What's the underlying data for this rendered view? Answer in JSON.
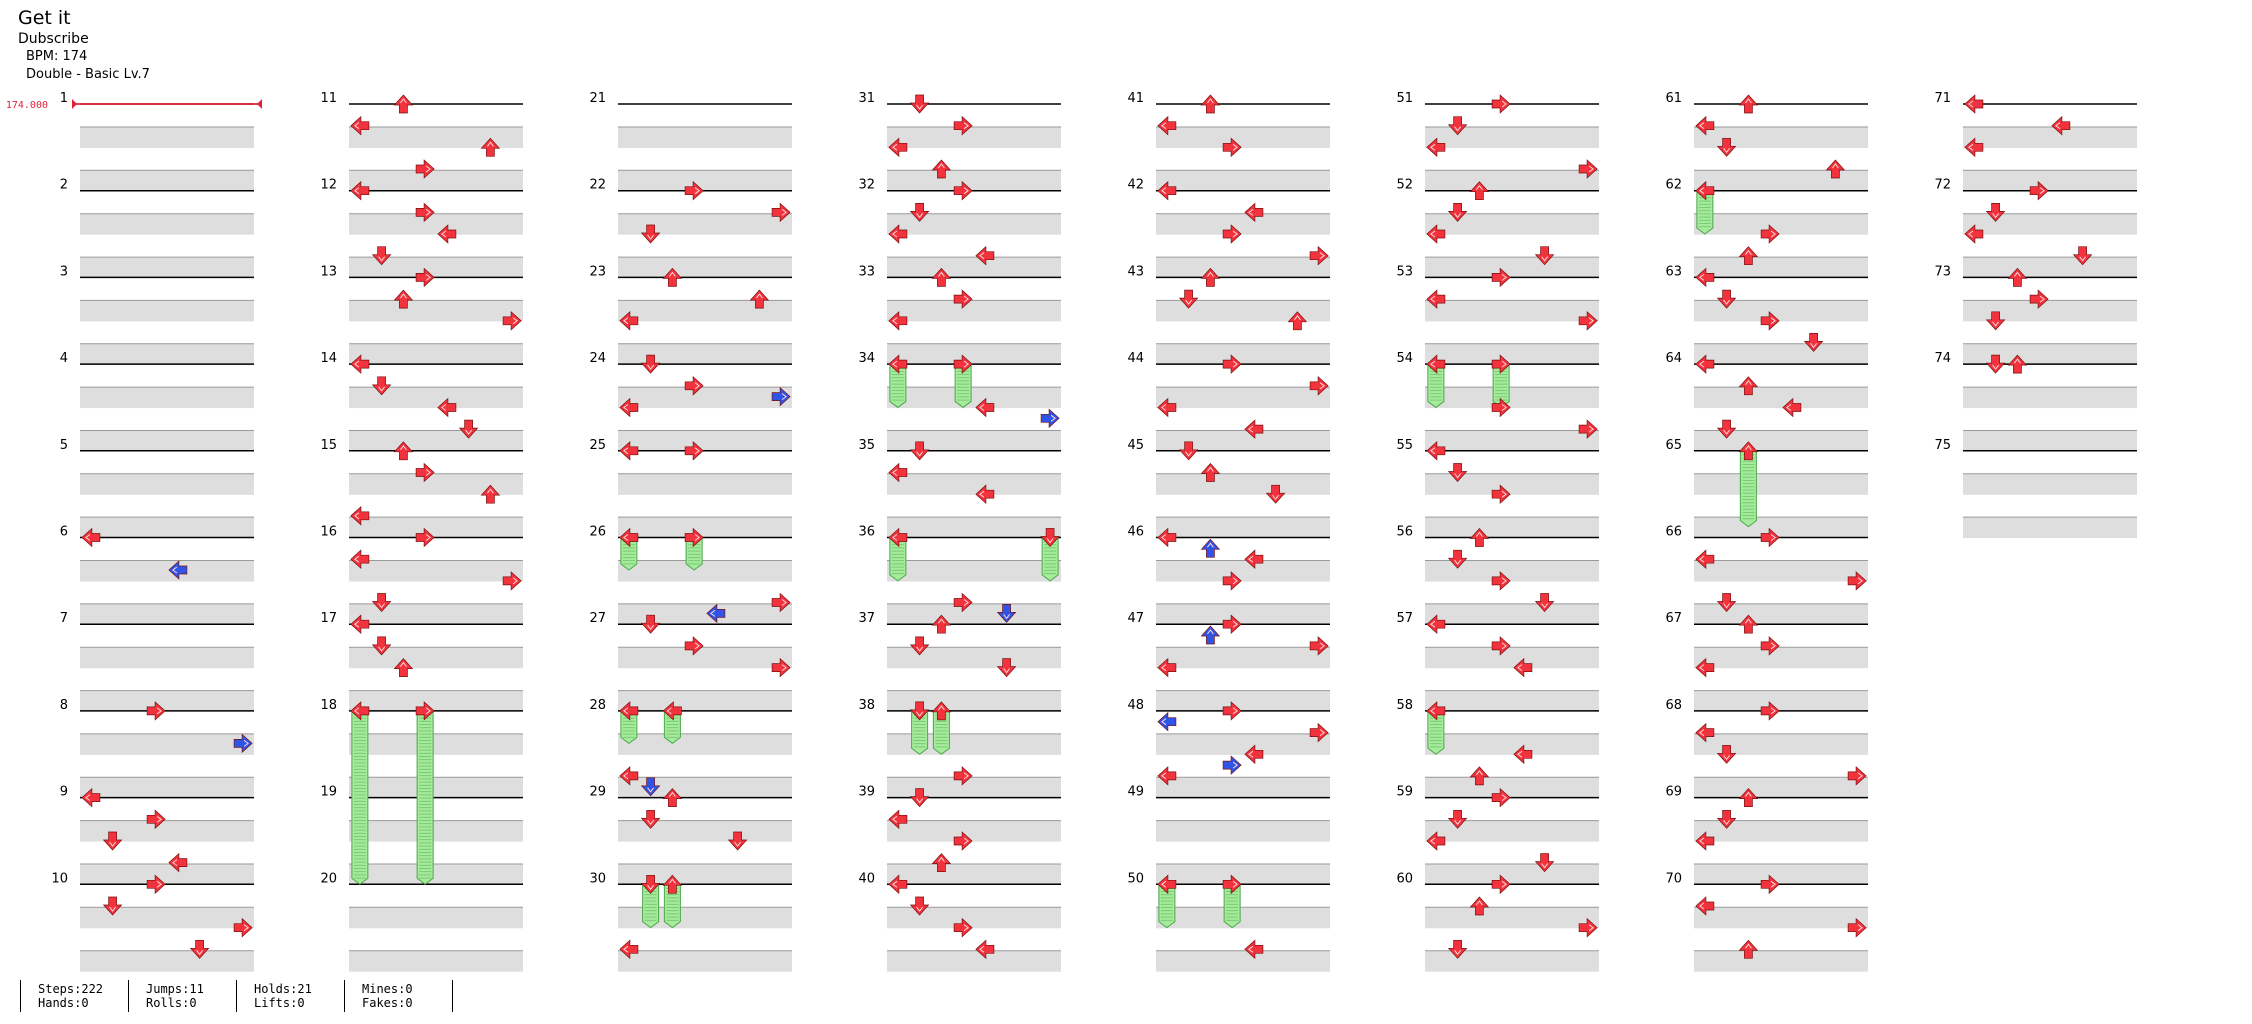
{
  "song": {
    "title": "Get it",
    "artist": "Dubscribe",
    "bpm_label": "BPM: 174",
    "difficulty_label": "Double - Basic Lv.7"
  },
  "bpm_marker": "174.000",
  "measures": [
    "1",
    "2",
    "3",
    "4",
    "5",
    "6",
    "7",
    "8",
    "9",
    "10",
    "11",
    "12",
    "13",
    "14",
    "15",
    "16",
    "17",
    "18",
    "19",
    "20",
    "21",
    "22",
    "23",
    "24",
    "25",
    "26",
    "27",
    "28",
    "29",
    "30",
    "31",
    "32",
    "33",
    "34",
    "35",
    "36",
    "37",
    "38",
    "39",
    "40",
    "41",
    "42",
    "43",
    "44",
    "45",
    "46",
    "47",
    "48",
    "49",
    "50",
    "51",
    "52",
    "53",
    "54",
    "55",
    "56",
    "57",
    "58",
    "59",
    "60",
    "61",
    "62",
    "63",
    "64",
    "65",
    "66",
    "67",
    "68",
    "69",
    "70",
    "71",
    "72",
    "73",
    "74",
    "75"
  ],
  "colors": {
    "tap": "#f2323c",
    "tap_alt": "#2f55e8",
    "hold_fill": "#a6ea9c",
    "hold_stroke": "#4aa84a",
    "band": "#dedede",
    "bpm_line": "#e0223a"
  },
  "notes": {
    "m6": [
      {
        "beat": 0,
        "dir": "L"
      },
      {
        "beat": 0.75,
        "dir": "L",
        "alt": true
      }
    ],
    "m8": [
      {
        "beat": 0,
        "dir": "R"
      },
      {
        "beat": 0.75,
        "dir": "R",
        "alt": true
      }
    ],
    "m9": [
      {
        "beat": 0,
        "dir": "L"
      },
      {
        "beat": 0.5,
        "dir": "R"
      },
      {
        "beat": 1,
        "dir": "D"
      },
      {
        "beat": 1.5,
        "dir": "L"
      }
    ],
    "m10": [
      {
        "beat": 0,
        "dir": "R"
      },
      {
        "beat": 0.5,
        "dir": "D"
      },
      {
        "beat": 1,
        "dir": "R"
      },
      {
        "beat": 1.5,
        "dir": "D"
      }
    ],
    "m11": [
      {
        "beat": 0,
        "dir": "U"
      },
      {
        "beat": 0.5,
        "dir": "L"
      },
      {
        "beat": 1,
        "dir": "U"
      },
      {
        "beat": 1.5,
        "dir": "R"
      }
    ],
    "m12": [
      {
        "beat": 0,
        "dir": "L"
      },
      {
        "beat": 0.5,
        "dir": "R"
      },
      {
        "beat": 1,
        "dir": "L"
      },
      {
        "beat": 1.5,
        "dir": "D"
      }
    ],
    "m13": [
      {
        "beat": 0,
        "dir": "R"
      },
      {
        "beat": 0.5,
        "dir": "U"
      },
      {
        "beat": 1,
        "dir": "R"
      }
    ],
    "m14": [
      {
        "beat": 0,
        "dir": "L"
      },
      {
        "beat": 0.5,
        "dir": "D"
      },
      {
        "beat": 1,
        "dir": "L"
      },
      {
        "beat": 1.5,
        "dir": "D"
      }
    ],
    "m15": [
      {
        "beat": 0,
        "dir": "U"
      },
      {
        "beat": 0.5,
        "dir": "R"
      },
      {
        "beat": 1,
        "dir": "U"
      },
      {
        "beat": 1.5,
        "dir": "L"
      }
    ],
    "m16": [
      {
        "beat": 0,
        "dir": "R"
      },
      {
        "beat": 0.5,
        "dir": "L"
      },
      {
        "beat": 1,
        "dir": "R"
      },
      {
        "beat": 1.5,
        "dir": "D"
      }
    ],
    "m17": [
      {
        "beat": 0,
        "dir": "L"
      },
      {
        "beat": 0.5,
        "dir": "D"
      },
      {
        "beat": 1,
        "dir": "U"
      }
    ],
    "m18": [
      {
        "beat": 0,
        "dir": "L",
        "hold": 4
      },
      {
        "beat": 0,
        "dir": "R",
        "hold": 4
      }
    ],
    "m22": [
      {
        "beat": 0,
        "dir": "R"
      },
      {
        "beat": 0.5,
        "dir": "R"
      },
      {
        "beat": 1,
        "dir": "D"
      }
    ],
    "m23": [
      {
        "beat": 0,
        "dir": "U"
      },
      {
        "beat": 0.5,
        "dir": "U"
      },
      {
        "beat": 1,
        "dir": "L"
      }
    ],
    "m24": [
      {
        "beat": 0,
        "dir": "D"
      },
      {
        "beat": 0.5,
        "dir": "R"
      },
      {
        "beat": 0.75,
        "dir": "R",
        "alt": true
      },
      {
        "beat": 1,
        "dir": "L"
      }
    ],
    "m25": [
      {
        "beat": 0,
        "dir": "R"
      },
      {
        "beat": 0,
        "dir": "L"
      }
    ],
    "m26": [
      {
        "beat": 0,
        "dir": "R",
        "hold": 0.75
      },
      {
        "beat": 0,
        "dir": "L",
        "hold": 0.75
      },
      {
        "beat": 1.5,
        "dir": "R"
      },
      {
        "beat": 1.75,
        "dir": "L",
        "alt": true
      }
    ],
    "m27": [
      {
        "beat": 0,
        "dir": "D"
      },
      {
        "beat": 0.5,
        "dir": "R"
      },
      {
        "beat": 1,
        "dir": "R"
      }
    ],
    "m28": [
      {
        "beat": 0,
        "dir": "L",
        "hold": 0.75
      },
      {
        "beat": 0,
        "dir": "L",
        "hold": 0.75,
        "col": 2
      },
      {
        "beat": 1.5,
        "dir": "L"
      },
      {
        "beat": 1.75,
        "dir": "D",
        "alt": true
      },
      {
        "beat": 2,
        "dir": "U"
      }
    ],
    "m29": [
      {
        "beat": 0.5,
        "dir": "D"
      },
      {
        "beat": 1,
        "dir": "D"
      }
    ],
    "m30": [
      {
        "beat": 0,
        "dir": "D",
        "hold": 1
      },
      {
        "beat": 0,
        "dir": "U",
        "hold": 1
      },
      {
        "beat": 1.5,
        "dir": "L"
      }
    ],
    "m31": [
      {
        "beat": 0,
        "dir": "D"
      },
      {
        "beat": 0.5,
        "dir": "R"
      },
      {
        "beat": 1,
        "dir": "L"
      },
      {
        "beat": 1.5,
        "dir": "U"
      }
    ],
    "m32": [
      {
        "beat": 0,
        "dir": "R"
      },
      {
        "beat": 0.5,
        "dir": "D"
      },
      {
        "beat": 1,
        "dir": "L"
      },
      {
        "beat": 1.5,
        "dir": "L"
      }
    ],
    "m33": [
      {
        "beat": 0,
        "dir": "U"
      },
      {
        "beat": 0.5,
        "dir": "R"
      },
      {
        "beat": 1,
        "dir": "L"
      }
    ],
    "m34": [
      {
        "beat": 0,
        "dir": "R",
        "hold": 1
      },
      {
        "beat": 0,
        "dir": "L",
        "hold": 1
      },
      {
        "beat": 1.25,
        "dir": "R",
        "alt": true
      },
      {
        "beat": 1,
        "dir": "L"
      }
    ],
    "m35": [
      {
        "beat": 0,
        "dir": "D"
      },
      {
        "beat": 0.5,
        "dir": "L"
      },
      {
        "beat": 1,
        "dir": "L"
      }
    ],
    "m36": [
      {
        "beat": 0,
        "dir": "L",
        "hold": 1
      },
      {
        "beat": 0,
        "dir": "D",
        "hold": 1,
        "col": 7
      },
      {
        "beat": 1.5,
        "dir": "R"
      },
      {
        "beat": 1.75,
        "dir": "D",
        "alt": true
      }
    ],
    "m37": [
      {
        "beat": 0,
        "dir": "U"
      },
      {
        "beat": 0.5,
        "dir": "D"
      },
      {
        "beat": 1,
        "dir": "D"
      }
    ],
    "m38": [
      {
        "beat": 0,
        "dir": "D",
        "hold": 1
      },
      {
        "beat": 0,
        "dir": "U",
        "hold": 1
      },
      {
        "beat": 1.5,
        "dir": "R"
      }
    ],
    "m39": [
      {
        "beat": 0,
        "dir": "D"
      },
      {
        "beat": 0.5,
        "dir": "L"
      },
      {
        "beat": 1,
        "dir": "R"
      },
      {
        "beat": 1.5,
        "dir": "U"
      }
    ],
    "m40": [
      {
        "beat": 0,
        "dir": "L"
      },
      {
        "beat": 0.5,
        "dir": "D"
      },
      {
        "beat": 1,
        "dir": "R"
      },
      {
        "beat": 1.5,
        "dir": "L"
      }
    ],
    "m41": [
      {
        "beat": 0,
        "dir": "U"
      },
      {
        "beat": 0.5,
        "dir": "L"
      },
      {
        "beat": 1,
        "dir": "R"
      }
    ],
    "m42": [
      {
        "beat": 0,
        "dir": "L"
      },
      {
        "beat": 0.5,
        "dir": "L"
      },
      {
        "beat": 1,
        "dir": "R"
      },
      {
        "beat": 1.5,
        "dir": "R"
      }
    ],
    "m43": [
      {
        "beat": 0,
        "dir": "U"
      },
      {
        "beat": 0.5,
        "dir": "D"
      },
      {
        "beat": 1,
        "dir": "U"
      }
    ],
    "m44": [
      {
        "beat": 0,
        "dir": "R"
      },
      {
        "beat": 0.5,
        "dir": "R"
      },
      {
        "beat": 1,
        "dir": "L"
      },
      {
        "beat": 1.5,
        "dir": "L"
      }
    ],
    "m45": [
      {
        "beat": 0,
        "dir": "D"
      },
      {
        "beat": 0.5,
        "dir": "U"
      },
      {
        "beat": 1,
        "dir": "D"
      }
    ],
    "m46": [
      {
        "beat": 0,
        "dir": "L"
      },
      {
        "beat": 0.25,
        "dir": "U",
        "alt": true
      },
      {
        "beat": 0.5,
        "dir": "L"
      },
      {
        "beat": 1,
        "dir": "R"
      }
    ],
    "m47": [
      {
        "beat": 0,
        "dir": "R"
      },
      {
        "beat": 0.25,
        "dir": "U",
        "alt": true
      },
      {
        "beat": 0.5,
        "dir": "R"
      },
      {
        "beat": 1,
        "dir": "L"
      }
    ],
    "m48": [
      {
        "beat": 0,
        "dir": "R"
      },
      {
        "beat": 0.25,
        "dir": "L",
        "alt": true
      },
      {
        "beat": 0.5,
        "dir": "R"
      },
      {
        "beat": 1,
        "dir": "L"
      },
      {
        "beat": 1.25,
        "dir": "R",
        "alt": true
      },
      {
        "beat": 1.5,
        "dir": "L"
      }
    ],
    "m50": [
      {
        "beat": 0,
        "dir": "R",
        "hold": 1
      },
      {
        "beat": 0,
        "dir": "L",
        "hold": 1
      },
      {
        "beat": 1.5,
        "dir": "L"
      }
    ],
    "m51": [
      {
        "beat": 0,
        "dir": "R"
      },
      {
        "beat": 0.5,
        "dir": "D"
      },
      {
        "beat": 1,
        "dir": "L"
      },
      {
        "beat": 1.5,
        "dir": "R"
      }
    ],
    "m52": [
      {
        "beat": 0,
        "dir": "U"
      },
      {
        "beat": 0.5,
        "dir": "D"
      },
      {
        "beat": 1,
        "dir": "L"
      },
      {
        "beat": 1.5,
        "dir": "D"
      }
    ],
    "m53": [
      {
        "beat": 0,
        "dir": "R"
      },
      {
        "beat": 0.5,
        "dir": "L"
      },
      {
        "beat": 1,
        "dir": "R"
      }
    ],
    "m54": [
      {
        "beat": 0,
        "dir": "R",
        "hold": 1
      },
      {
        "beat": 0,
        "dir": "L",
        "hold": 1
      },
      {
        "beat": 1.5,
        "dir": "R"
      },
      {
        "beat": 1,
        "dir": "R"
      }
    ],
    "m55": [
      {
        "beat": 0,
        "dir": "L"
      },
      {
        "beat": 0.5,
        "dir": "D"
      },
      {
        "beat": 1,
        "dir": "R"
      }
    ],
    "m56": [
      {
        "beat": 0,
        "dir": "U"
      },
      {
        "beat": 0.5,
        "dir": "D"
      },
      {
        "beat": 1,
        "dir": "R"
      },
      {
        "beat": 1.5,
        "dir": "D"
      }
    ],
    "m57": [
      {
        "beat": 0,
        "dir": "L"
      },
      {
        "beat": 0.5,
        "dir": "R"
      },
      {
        "beat": 1,
        "dir": "L"
      }
    ],
    "m58": [
      {
        "beat": 0,
        "dir": "L",
        "hold": 1
      },
      {
        "beat": 1,
        "dir": "L"
      },
      {
        "beat": 1.5,
        "dir": "U"
      }
    ],
    "m59": [
      {
        "beat": 0,
        "dir": "R"
      },
      {
        "beat": 0.5,
        "dir": "D"
      },
      {
        "beat": 1,
        "dir": "L"
      },
      {
        "beat": 1.5,
        "dir": "D"
      }
    ],
    "m60": [
      {
        "beat": 0,
        "dir": "R"
      },
      {
        "beat": 0.5,
        "dir": "U"
      },
      {
        "beat": 1,
        "dir": "R"
      },
      {
        "beat": 1.5,
        "dir": "D"
      }
    ],
    "m61": [
      {
        "beat": 0,
        "dir": "U"
      },
      {
        "beat": 0.5,
        "dir": "L"
      },
      {
        "beat": 1,
        "dir": "D"
      },
      {
        "beat": 1.5,
        "dir": "U"
      }
    ],
    "m62": [
      {
        "beat": 0,
        "dir": "L",
        "hold": 1
      },
      {
        "beat": 1,
        "dir": "R"
      },
      {
        "beat": 1.5,
        "dir": "U"
      }
    ],
    "m63": [
      {
        "beat": 0,
        "dir": "L"
      },
      {
        "beat": 0.5,
        "dir": "D"
      },
      {
        "beat": 1,
        "dir": "R"
      },
      {
        "beat": 1.5,
        "dir": "D"
      }
    ],
    "m64": [
      {
        "beat": 0,
        "dir": "L"
      },
      {
        "beat": 0.5,
        "dir": "U"
      },
      {
        "beat": 1,
        "dir": "L"
      },
      {
        "beat": 1.5,
        "dir": "D"
      }
    ],
    "m65": [
      {
        "beat": 0,
        "dir": "U",
        "hold": 1.75
      }
    ],
    "m66": [
      {
        "beat": 0,
        "dir": "R"
      },
      {
        "beat": 0.5,
        "dir": "L"
      },
      {
        "beat": 1,
        "dir": "R"
      },
      {
        "beat": 1.5,
        "dir": "D"
      }
    ],
    "m67": [
      {
        "beat": 0,
        "dir": "U"
      },
      {
        "beat": 0.5,
        "dir": "R"
      },
      {
        "beat": 1,
        "dir": "L"
      }
    ],
    "m68": [
      {
        "beat": 0,
        "dir": "R"
      },
      {
        "beat": 0.5,
        "dir": "L"
      },
      {
        "beat": 1,
        "dir": "D"
      },
      {
        "beat": 1.5,
        "dir": "R"
      }
    ],
    "m69": [
      {
        "beat": 0,
        "dir": "U"
      },
      {
        "beat": 0.5,
        "dir": "D"
      },
      {
        "beat": 1,
        "dir": "L"
      }
    ],
    "m70": [
      {
        "beat": 0,
        "dir": "R"
      },
      {
        "beat": 0.5,
        "dir": "L"
      },
      {
        "beat": 1,
        "dir": "R"
      },
      {
        "beat": 1.5,
        "dir": "U"
      }
    ],
    "m71": [
      {
        "beat": 0,
        "dir": "L"
      },
      {
        "beat": 0.5,
        "dir": "L"
      },
      {
        "beat": 1,
        "dir": "L"
      }
    ],
    "m72": [
      {
        "beat": 0,
        "dir": "R"
      },
      {
        "beat": 0.5,
        "dir": "D"
      },
      {
        "beat": 1,
        "dir": "L"
      },
      {
        "beat": 1.5,
        "dir": "D"
      }
    ],
    "m73": [
      {
        "beat": 0,
        "dir": "U"
      },
      {
        "beat": 0.5,
        "dir": "R"
      },
      {
        "beat": 1,
        "dir": "D"
      }
    ],
    "m74": [
      {
        "beat": 0,
        "dir": "D"
      },
      {
        "beat": 0,
        "dir": "U"
      }
    ]
  },
  "stats": {
    "steps": "Steps:222",
    "hands": "Hands:0",
    "jumps": "Jumps:11",
    "rolls": "Rolls:0",
    "holds": "Holds:21",
    "lifts": "Lifts:0",
    "mines": "Mines:0",
    "fakes": "Fakes:0"
  }
}
